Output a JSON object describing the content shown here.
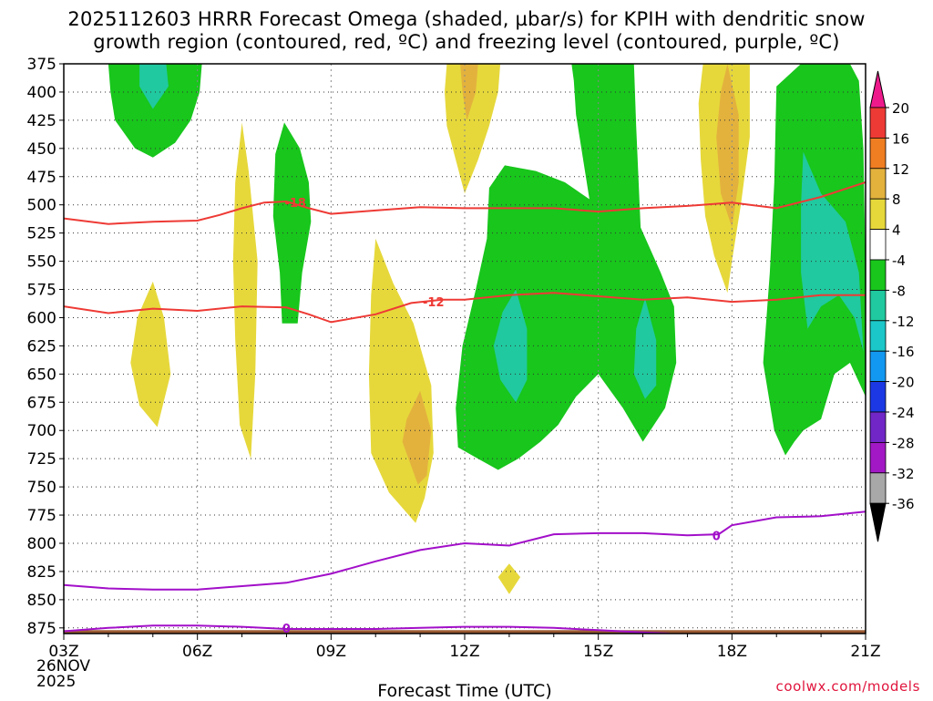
{
  "title_line1": "2025112603 HRRR Forecast Omega (shaded, µbar/s) for KPIH with dendritic snow",
  "title_line2": "growth region (contoured, red, ºC) and freezing level (contoured, purple, ºC)",
  "xlabel": "Forecast Time (UTC)",
  "credit": "coolwx.com/models",
  "date_labels": [
    "26NOV",
    "2025"
  ],
  "chart_data": {
    "type": "contour",
    "title": "2025112603 HRRR Forecast Omega (shaded, µbar/s) for KPIH with dendritic snow growth region (contoured, red, ºC) and freezing level (contoured, purple, ºC)",
    "xlabel": "Forecast Time (UTC)",
    "ylabel": "",
    "x_ticks": [
      "03Z",
      "06Z",
      "09Z",
      "12Z",
      "15Z",
      "18Z",
      "21Z"
    ],
    "x_range_hours": [
      3,
      21
    ],
    "y_ticks": [
      375,
      400,
      425,
      450,
      475,
      500,
      525,
      550,
      575,
      600,
      625,
      650,
      675,
      700,
      725,
      750,
      775,
      800,
      825,
      850,
      875
    ],
    "y_range": [
      375,
      880
    ],
    "y_inverted": true,
    "grid": true,
    "colorbar": {
      "ticks": [
        20,
        16,
        12,
        8,
        4,
        -4,
        -8,
        -12,
        -16,
        -20,
        -24,
        -28,
        -32,
        -36
      ],
      "colors": [
        "#ee1a8c",
        "#ee3a35",
        "#ef7d22",
        "#e3b23d",
        "#e6d83b",
        "#ffffff",
        "#18c61c",
        "#20c99f",
        "#1cc7c9",
        "#1398f2",
        "#1c38e4",
        "#7126c7",
        "#a218c5",
        "#a8a8a8",
        "#000000"
      ]
    },
    "shaded_regions": [
      {
        "level": -4,
        "color": "#18c61c",
        "points": [
          [
            4.0,
            375
          ],
          [
            5.0,
            375
          ],
          [
            6.1,
            375
          ],
          [
            6.05,
            400
          ],
          [
            5.85,
            425
          ],
          [
            5.5,
            445
          ],
          [
            5.0,
            458
          ],
          [
            4.6,
            450
          ],
          [
            4.15,
            425
          ],
          [
            4.05,
            400
          ]
        ]
      },
      {
        "level": -8,
        "color": "#20c99f",
        "points": [
          [
            4.7,
            375
          ],
          [
            5.3,
            375
          ],
          [
            5.35,
            395
          ],
          [
            5.0,
            415
          ],
          [
            4.7,
            395
          ]
        ]
      },
      {
        "level": -4,
        "color": "#18c61c",
        "points": [
          [
            7.95,
            427
          ],
          [
            8.3,
            450
          ],
          [
            8.5,
            480
          ],
          [
            8.55,
            515
          ],
          [
            8.35,
            560
          ],
          [
            8.25,
            605
          ],
          [
            7.9,
            605
          ],
          [
            7.85,
            560
          ],
          [
            7.7,
            510
          ],
          [
            7.75,
            455
          ]
        ]
      },
      {
        "level": 4,
        "color": "#e6d83b",
        "points": [
          [
            7.0,
            427
          ],
          [
            7.15,
            470
          ],
          [
            7.35,
            550
          ],
          [
            7.3,
            650
          ],
          [
            7.2,
            725
          ],
          [
            6.95,
            695
          ],
          [
            6.85,
            620
          ],
          [
            6.8,
            550
          ],
          [
            6.85,
            480
          ]
        ]
      },
      {
        "level": 4,
        "color": "#e6d83b",
        "points": [
          [
            5.0,
            568
          ],
          [
            5.25,
            600
          ],
          [
            5.4,
            650
          ],
          [
            5.1,
            697
          ],
          [
            4.7,
            678
          ],
          [
            4.5,
            640
          ],
          [
            4.65,
            600
          ]
        ]
      },
      {
        "level": 4,
        "color": "#e6d83b",
        "points": [
          [
            10.0,
            530
          ],
          [
            10.4,
            570
          ],
          [
            10.85,
            605
          ],
          [
            11.25,
            660
          ],
          [
            11.3,
            720
          ],
          [
            11.1,
            760
          ],
          [
            10.9,
            782
          ],
          [
            10.3,
            755
          ],
          [
            9.9,
            720
          ],
          [
            9.85,
            650
          ],
          [
            9.9,
            580
          ]
        ]
      },
      {
        "level": 8,
        "color": "#e3b23d",
        "points": [
          [
            11.0,
            665
          ],
          [
            11.25,
            700
          ],
          [
            11.15,
            740
          ],
          [
            10.95,
            748
          ],
          [
            10.6,
            710
          ],
          [
            10.7,
            690
          ]
        ]
      },
      {
        "level": 4,
        "color": "#e6d83b",
        "points": [
          [
            11.6,
            375
          ],
          [
            12.8,
            375
          ],
          [
            12.75,
            400
          ],
          [
            12.55,
            430
          ],
          [
            12.3,
            460
          ],
          [
            12.0,
            490
          ],
          [
            11.8,
            460
          ],
          [
            11.6,
            430
          ],
          [
            11.55,
            400
          ]
        ]
      },
      {
        "level": 8,
        "color": "#e3b23d",
        "points": [
          [
            11.9,
            375
          ],
          [
            12.3,
            375
          ],
          [
            12.25,
            400
          ],
          [
            12.05,
            425
          ],
          [
            11.95,
            400
          ]
        ]
      },
      {
        "level": -4,
        "color": "#18c61c",
        "points": [
          [
            14.4,
            375
          ],
          [
            15.8,
            375
          ],
          [
            15.85,
            430
          ],
          [
            15.95,
            520
          ],
          [
            16.4,
            560
          ],
          [
            16.7,
            590
          ],
          [
            16.75,
            640
          ],
          [
            16.5,
            680
          ],
          [
            16.0,
            710
          ],
          [
            15.55,
            680
          ],
          [
            15.0,
            650
          ],
          [
            14.5,
            670
          ],
          [
            14.1,
            695
          ],
          [
            13.7,
            710
          ],
          [
            13.2,
            725
          ],
          [
            12.75,
            735
          ],
          [
            12.3,
            725
          ],
          [
            11.85,
            715
          ],
          [
            11.8,
            680
          ],
          [
            11.95,
            625
          ],
          [
            12.25,
            575
          ],
          [
            12.5,
            530
          ],
          [
            12.55,
            485
          ],
          [
            12.9,
            465
          ],
          [
            13.6,
            470
          ],
          [
            14.25,
            480
          ],
          [
            14.8,
            495
          ],
          [
            14.7,
            470
          ],
          [
            14.5,
            420
          ],
          [
            14.45,
            390
          ]
        ]
      },
      {
        "level": -8,
        "color": "#20c99f",
        "points": [
          [
            13.15,
            575
          ],
          [
            13.4,
            610
          ],
          [
            13.4,
            655
          ],
          [
            13.15,
            675
          ],
          [
            12.8,
            655
          ],
          [
            12.65,
            625
          ],
          [
            12.85,
            595
          ]
        ]
      },
      {
        "level": -8,
        "color": "#20c99f",
        "points": [
          [
            16.05,
            583
          ],
          [
            16.3,
            620
          ],
          [
            16.3,
            660
          ],
          [
            16.05,
            672
          ],
          [
            15.8,
            650
          ],
          [
            15.85,
            610
          ]
        ]
      },
      {
        "level": 4,
        "color": "#e6d83b",
        "points": [
          [
            17.35,
            375
          ],
          [
            18.4,
            375
          ],
          [
            18.4,
            440
          ],
          [
            18.2,
            500
          ],
          [
            18.0,
            550
          ],
          [
            17.9,
            578
          ],
          [
            17.6,
            545
          ],
          [
            17.4,
            510
          ],
          [
            17.3,
            460
          ],
          [
            17.25,
            410
          ]
        ]
      },
      {
        "level": 8,
        "color": "#e3b23d",
        "points": [
          [
            17.9,
            375
          ],
          [
            18.15,
            420
          ],
          [
            18.15,
            480
          ],
          [
            18.0,
            520
          ],
          [
            17.75,
            490
          ],
          [
            17.65,
            440
          ],
          [
            17.75,
            400
          ]
        ]
      },
      {
        "level": -4,
        "color": "#18c61c",
        "points": [
          [
            19.0,
            395
          ],
          [
            19.55,
            375
          ],
          [
            20.65,
            375
          ],
          [
            20.85,
            390
          ],
          [
            20.95,
            450
          ],
          [
            21.0,
            560
          ],
          [
            21.0,
            670
          ],
          [
            20.65,
            640
          ],
          [
            20.3,
            650
          ],
          [
            20.0,
            690
          ],
          [
            19.6,
            700
          ],
          [
            19.4,
            710
          ],
          [
            19.2,
            722
          ],
          [
            18.95,
            700
          ],
          [
            18.7,
            640
          ],
          [
            18.85,
            560
          ],
          [
            18.95,
            480
          ]
        ]
      },
      {
        "level": -8,
        "color": "#20c99f",
        "points": [
          [
            19.6,
            453
          ],
          [
            20.0,
            490
          ],
          [
            20.55,
            515
          ],
          [
            20.85,
            560
          ],
          [
            20.95,
            630
          ],
          [
            20.75,
            600
          ],
          [
            20.4,
            580
          ],
          [
            20.0,
            590
          ],
          [
            19.7,
            610
          ],
          [
            19.55,
            560
          ],
          [
            19.55,
            500
          ]
        ]
      },
      {
        "level": 4,
        "color": "#e6d83b",
        "points": [
          [
            13.0,
            818
          ],
          [
            13.25,
            830
          ],
          [
            13.0,
            845
          ],
          [
            12.75,
            830
          ]
        ]
      }
    ],
    "contours": [
      {
        "label": "-18",
        "color": "#ee3a35",
        "label_at": [
          8.2,
          498
        ],
        "x": [
          3.0,
          4.0,
          5.0,
          6.0,
          6.5,
          7.0,
          7.5,
          8.0,
          8.5,
          9.0,
          10.0,
          11.0,
          12.0,
          13.0,
          14.0,
          15.0,
          16.0,
          17.0,
          18.0,
          19.0,
          20.0,
          21.0
        ],
        "y": [
          512,
          517,
          515,
          514,
          509,
          503,
          498,
          497,
          503,
          508,
          505,
          502,
          503,
          503,
          503,
          506,
          503,
          501,
          498,
          503,
          493,
          480
        ]
      },
      {
        "label": "-12",
        "color": "#ee3a35",
        "label_at": [
          11.3,
          586
        ],
        "x": [
          3.0,
          4.0,
          5.0,
          6.0,
          7.0,
          8.0,
          8.5,
          9.0,
          10.0,
          10.8,
          11.5,
          12.0,
          13.0,
          14.0,
          15.0,
          16.0,
          17.0,
          18.0,
          19.0,
          20.0,
          21.0
        ],
        "y": [
          590,
          596,
          592,
          594,
          590,
          591,
          597,
          604,
          597,
          587,
          584,
          584,
          580,
          578,
          581,
          584,
          582,
          586,
          584,
          580,
          580
        ]
      },
      {
        "label": "0",
        "color": "#a20fc9",
        "label_at": [
          17.65,
          793
        ],
        "x": [
          3.0,
          4.0,
          5.0,
          6.0,
          7.0,
          8.0,
          9.0,
          10.0,
          11.0,
          12.0,
          13.0,
          14.0,
          15.0,
          16.0,
          17.0,
          17.7,
          18.0,
          19.0,
          20.0,
          21.0
        ],
        "y": [
          837,
          840,
          841,
          841,
          838,
          835,
          827,
          816,
          806,
          800,
          802,
          792,
          791,
          791,
          793,
          792,
          784,
          777,
          776,
          772
        ]
      },
      {
        "label": "0",
        "color": "#a20fc9",
        "label_at": [
          8.0,
          875
        ],
        "x": [
          3.0,
          4.0,
          5.0,
          6.0,
          7.0,
          8.0,
          9.0,
          10.0,
          11.0,
          12.0,
          13.0,
          14.0,
          15.0,
          16.0,
          16.6
        ],
        "y": [
          878,
          875,
          873,
          873,
          874,
          876,
          876,
          876,
          875,
          874,
          874,
          875,
          877,
          879,
          880
        ]
      }
    ]
  }
}
